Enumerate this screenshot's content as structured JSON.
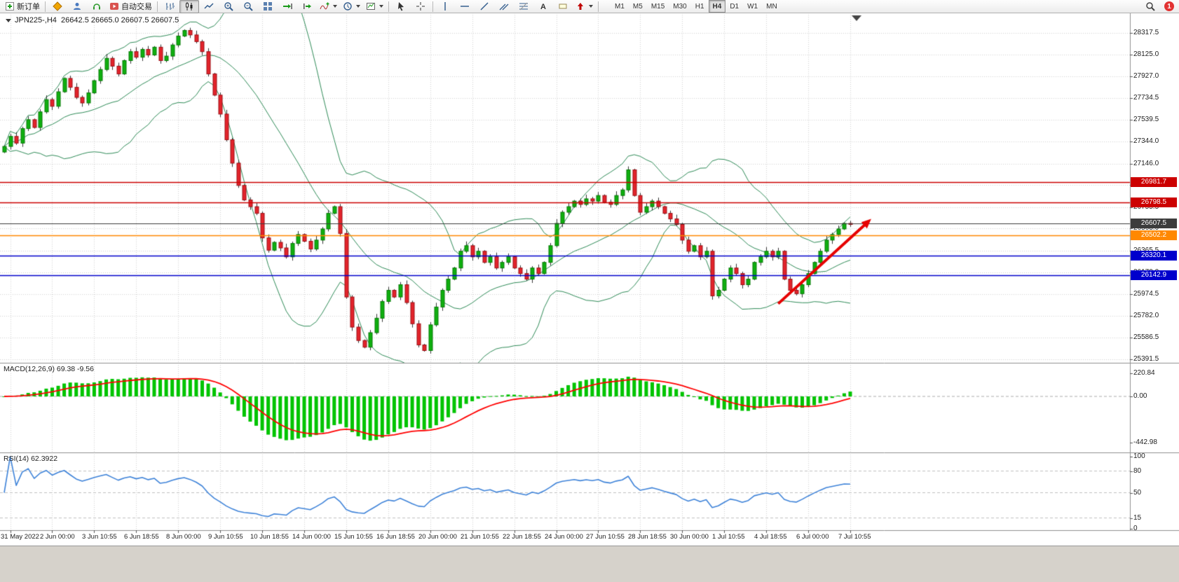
{
  "toolbar": {
    "new_order_label": "新订单",
    "autotrading_label": "自动交易",
    "timeframes": [
      "M1",
      "M5",
      "M15",
      "M30",
      "H1",
      "H4",
      "D1",
      "W1",
      "MN"
    ],
    "active_timeframe": "H4",
    "notification_count": "1",
    "icon_names": [
      "new-order",
      "metaquotes",
      "profile",
      "support",
      "autotrading",
      "bar-chart",
      "candlestick-chart",
      "line-chart",
      "zoom-in",
      "zoom-out",
      "tile-windows",
      "auto-scroll",
      "chart-shift",
      "add-indicator",
      "periods",
      "templates",
      "cursor",
      "crosshair",
      "vertical-line",
      "horizontal-line",
      "trendline",
      "equidistant-channel",
      "fibonacci-retracement",
      "text",
      "text-label",
      "arrow-object",
      "search",
      "notifications"
    ]
  },
  "chart": {
    "symbol_period": "JPN225-,H4",
    "ohlc_text": "26642.5 26665.0 26607.5 26607.5",
    "price_axis": [
      "28317.5",
      "28125.0",
      "27927.0",
      "27734.5",
      "27539.5",
      "27344.0",
      "27146.0",
      "26953.5",
      "26755.5",
      "26563.0",
      "26365.5",
      "26170.0",
      "25974.5",
      "25782.0",
      "25586.5",
      "25391.5"
    ],
    "time_axis": [
      "31 May 2022",
      "2 Jun 00:00",
      "3 Jun 10:55",
      "6 Jun 18:55",
      "8 Jun 00:00",
      "9 Jun 10:55",
      "10 Jun 18:55",
      "14 Jun 00:00",
      "15 Jun 10:55",
      "16 Jun 18:55",
      "20 Jun 00:00",
      "21 Jun 10:55",
      "22 Jun 18:55",
      "24 Jun 00:00",
      "27 Jun 10:55",
      "28 Jun 18:55",
      "30 Jun 00:00",
      "1 Jul 10:55",
      "4 Jul 18:55",
      "6 Jul 00:00",
      "7 Jul 10:55"
    ],
    "levels": [
      {
        "label": "26981.7",
        "value": 26981.7,
        "color": "#cc0000",
        "width": 1.4
      },
      {
        "label": "26798.5",
        "value": 26798.5,
        "color": "#cc0000",
        "width": 1.4
      },
      {
        "label": "26607.5",
        "value": 26607.5,
        "color": "#3c3c3c",
        "width": 1
      },
      {
        "label": "26502.2",
        "value": 26502.2,
        "color": "#ff8800",
        "width": 1.6
      },
      {
        "label": "26320.1",
        "value": 26320.1,
        "color": "#0000cc",
        "width": 1.6
      },
      {
        "label": "26142.9",
        "value": 26142.9,
        "color": "#0000cc",
        "width": 1.6
      }
    ]
  },
  "macd": {
    "label": "MACD(12,26,9) 69.38 -9.56",
    "axis": [
      "220.84",
      "0.00",
      "-442.98"
    ],
    "fast": 12,
    "slow": 26,
    "signal": 9,
    "histogram_color": "#00c400",
    "signal_color": "#ff0000"
  },
  "rsi": {
    "label": "RSI(14) 62.3922",
    "axis": [
      "100",
      "80",
      "50",
      "15",
      "0"
    ],
    "period": 14,
    "levels": [
      80,
      50,
      15
    ],
    "line_color": "#3e83d9"
  },
  "chart_data": {
    "type": "candlestick",
    "symbol": "JPN225-",
    "timeframe": "H4",
    "title": "JPN225-,H4",
    "current_ohlc": {
      "open": 26642.5,
      "high": 26665.0,
      "low": 26607.5,
      "close": 26607.5
    },
    "x_first_label": "31 May 2022",
    "x_last_label": "7 Jul 10:55",
    "price_range": {
      "min": 25360,
      "max": 28500
    },
    "first_open": 27250,
    "closes": [
      27300,
      27390,
      27330,
      27460,
      27540,
      27470,
      27610,
      27720,
      27660,
      27790,
      27910,
      27830,
      27740,
      27690,
      27780,
      27890,
      27990,
      28090,
      28020,
      27950,
      28070,
      28150,
      28100,
      28170,
      28120,
      28190,
      28070,
      28110,
      28210,
      28290,
      28340,
      28300,
      28240,
      28150,
      27950,
      27760,
      27590,
      27360,
      27150,
      26950,
      26820,
      26760,
      26700,
      26480,
      26370,
      26440,
      26390,
      26310,
      26430,
      26510,
      26450,
      26380,
      26460,
      26560,
      26700,
      26760,
      26520,
      25950,
      25680,
      25560,
      25500,
      25630,
      25760,
      25910,
      26010,
      25950,
      26060,
      25900,
      25710,
      25520,
      25470,
      25700,
      25860,
      26010,
      26110,
      26210,
      26360,
      26410,
      26310,
      26360,
      26260,
      26310,
      26210,
      26260,
      26310,
      26210,
      26160,
      26110,
      26210,
      26160,
      26260,
      26410,
      26610,
      26710,
      26760,
      26810,
      26780,
      26830,
      26810,
      26860,
      26800,
      26780,
      26860,
      26910,
      27090,
      26860,
      26710,
      26760,
      26810,
      26760,
      26700,
      26650,
      26600,
      26460,
      26360,
      26410,
      26310,
      26360,
      25960,
      26010,
      26110,
      26210,
      26160,
      26060,
      26110,
      26260,
      26310,
      26360,
      26310,
      26360,
      26110,
      26010,
      25980,
      26060,
      26160,
      26260,
      26360,
      26460,
      26510,
      26560,
      26610,
      26607.5
    ],
    "bollinger": {
      "period": 20,
      "deviation": 2,
      "color": "#2e8b57"
    },
    "horizontal_levels": [
      26981.7,
      26798.5,
      26607.5,
      26502.2,
      26320.1,
      26142.9
    ],
    "trend_arrow": {
      "start": {
        "bar": 129,
        "price": 25890
      },
      "end": {
        "bar": 144.5,
        "price": 26650
      },
      "color": "#e60000"
    }
  },
  "colors": {
    "up": "#0faf0f",
    "up_border": "#067a06",
    "down": "#e3242b",
    "down_border": "#9c1016",
    "wick": "#333333",
    "grid": "#d4d4d4",
    "axis_text": "#333333",
    "separator": "#909090"
  }
}
